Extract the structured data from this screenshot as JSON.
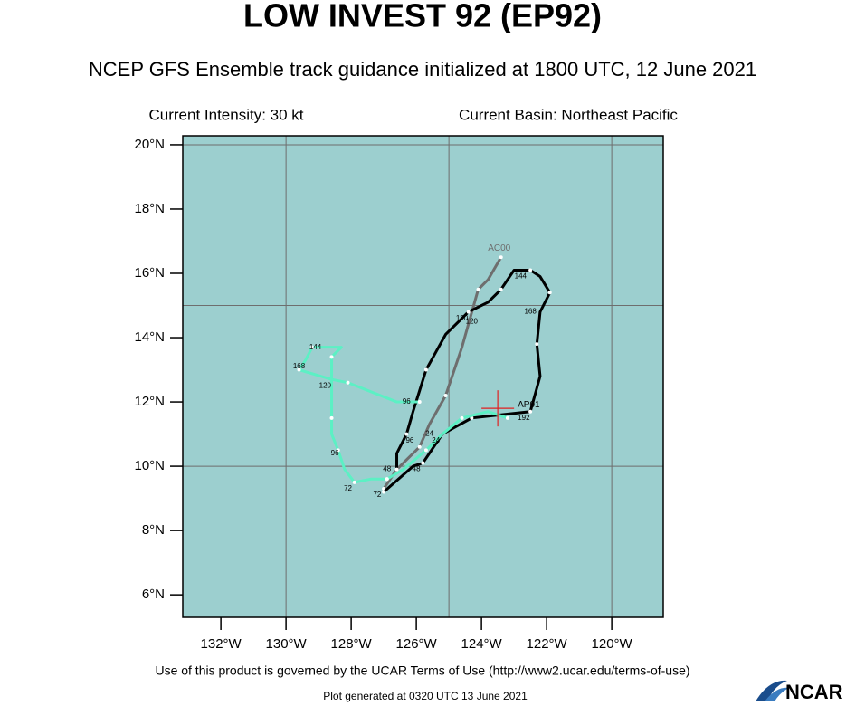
{
  "chart_data": {
    "type": "line",
    "title": "LOW INVEST 92 (EP92)",
    "subtitle": "NCEP GFS Ensemble track guidance initialized at 1800 UTC, 12 June 2021",
    "intensity": "Current Intensity: 30 kt",
    "basin": "Current Basin: Northeast Pacific",
    "footer": "Use of this product is governed by the UCAR Terms of Use (http://www2.ucar.edu/terms-of-use)",
    "generated": "Plot generated at 0320 UTC   13 June 2021",
    "logo": "NCAR",
    "background": "#9ccfcf",
    "xlim": [
      -133.17,
      -118.42
    ],
    "ylim": [
      5.3,
      20.28
    ],
    "xticks": [
      {
        "value": -132,
        "label": "132°W"
      },
      {
        "value": -130,
        "label": "130°W"
      },
      {
        "value": -128,
        "label": "128°W"
      },
      {
        "value": -126,
        "label": "126°W"
      },
      {
        "value": -124,
        "label": "124°W"
      },
      {
        "value": -122,
        "label": "122°W"
      },
      {
        "value": -120,
        "label": "120°W"
      }
    ],
    "yticks": [
      {
        "value": 6,
        "label": "6°N"
      },
      {
        "value": 8,
        "label": "8°N"
      },
      {
        "value": 10,
        "label": "10°N"
      },
      {
        "value": 12,
        "label": "12°N"
      },
      {
        "value": 14,
        "label": "14°N"
      },
      {
        "value": 16,
        "label": "16°N"
      },
      {
        "value": 18,
        "label": "18°N"
      },
      {
        "value": 20,
        "label": "20°N"
      }
    ],
    "xgrid": [
      -130,
      -125,
      -120
    ],
    "ygrid": [
      10,
      15,
      20
    ],
    "current_position": {
      "x": -123.5,
      "y": 11.8,
      "color": "#e02020"
    },
    "series": [
      {
        "name": "AC00",
        "color": "#6e6e6e",
        "x": [
          -127.0,
          -126.6,
          -125.9,
          -125.6,
          -125.1,
          -124.6,
          -124.1,
          -123.8,
          -123.4
        ],
        "values": [
          9.3,
          9.9,
          10.6,
          11.3,
          12.2,
          13.7,
          15.5,
          15.8,
          16.5
        ]
      },
      {
        "name": "AP01",
        "color": "#000000",
        "x": [
          -126.6,
          -126.6,
          -126.3,
          -126.1,
          -125.7,
          -125.1,
          -124.4,
          -123.8,
          -123.4,
          -123.0,
          -122.5,
          -122.2,
          -121.9,
          -122.2,
          -122.3,
          -122.2,
          -122.5,
          -123.4,
          -124.3,
          -125.2,
          -125.8,
          -126.1,
          -127.0
        ],
        "values": [
          9.9,
          10.4,
          11.0,
          11.7,
          13.0,
          14.1,
          14.8,
          15.1,
          15.5,
          16.1,
          16.1,
          15.9,
          15.4,
          14.8,
          13.8,
          12.8,
          11.7,
          11.6,
          11.5,
          11.0,
          10.1,
          10.0,
          9.2
        ]
      },
      {
        "color": "#5cf0c4",
        "x": [
          -126.9,
          -127.4,
          -127.9,
          -128.2,
          -128.4,
          -128.6,
          -128.6,
          -128.6,
          -128.6,
          -128.3,
          -129.2,
          -129.4,
          -129.6,
          -128.6,
          -128.1,
          -126.6,
          -125.9,
          null,
          -126.9,
          -126.4,
          -125.7,
          -125.2,
          -124.6,
          -123.8,
          -123.2
        ],
        "values": [
          9.6,
          9.6,
          9.5,
          9.9,
          10.5,
          11.0,
          11.5,
          12.6,
          13.4,
          13.7,
          13.7,
          13.3,
          13.0,
          12.7,
          12.6,
          12.0,
          12.0,
          null,
          9.6,
          9.9,
          10.5,
          11.0,
          11.5,
          11.7,
          11.5
        ]
      }
    ],
    "annotations": [
      {
        "text": "144",
        "x": -129.1,
        "y": 13.7
      },
      {
        "text": "168",
        "x": -129.6,
        "y": 13.1
      },
      {
        "text": "120",
        "x": -128.8,
        "y": 12.5
      },
      {
        "text": "96",
        "x": -126.3,
        "y": 12.0
      },
      {
        "text": "96",
        "x": -128.5,
        "y": 10.4
      },
      {
        "text": "72",
        "x": -128.1,
        "y": 9.3
      },
      {
        "text": "72",
        "x": -127.2,
        "y": 9.1
      },
      {
        "text": "48",
        "x": -126.9,
        "y": 9.9
      },
      {
        "text": "48",
        "x": -126.0,
        "y": 9.9
      },
      {
        "text": "24",
        "x": -125.6,
        "y": 11.0
      },
      {
        "text": "24",
        "x": -125.4,
        "y": 10.8
      },
      {
        "text": "96",
        "x": -126.2,
        "y": 10.8
      },
      {
        "text": "120",
        "x": -124.6,
        "y": 14.6
      },
      {
        "text": "120",
        "x": -124.3,
        "y": 14.5
      },
      {
        "text": "144",
        "x": -122.8,
        "y": 15.9
      },
      {
        "text": "168",
        "x": -122.5,
        "y": 14.8
      },
      {
        "text": "192",
        "x": -122.7,
        "y": 11.5
      }
    ]
  }
}
